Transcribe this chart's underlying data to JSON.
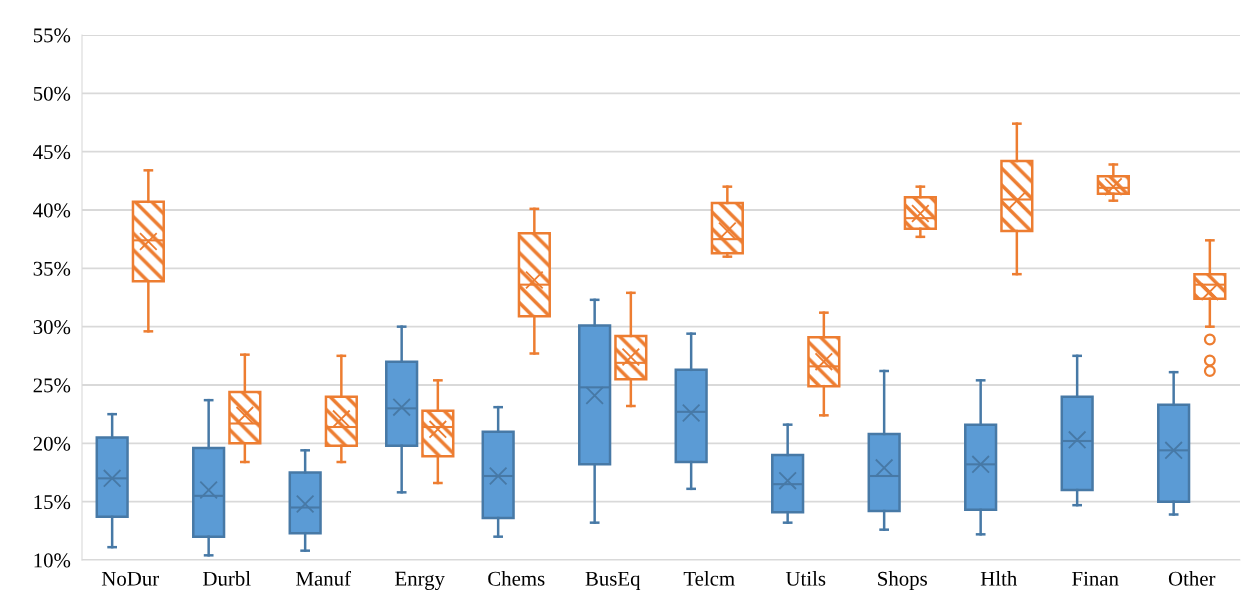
{
  "chart_data": {
    "type": "box",
    "categories": [
      "NoDur",
      "Durbl",
      "Manuf",
      "Enrgy",
      "Chems",
      "BusEq",
      "Telcm",
      "Utils",
      "Shops",
      "Hlth",
      "Finan",
      "Other"
    ],
    "ylim": [
      10,
      55
    ],
    "yticks": [
      {
        "value": 10,
        "label": "10%"
      },
      {
        "value": 15,
        "label": "15%"
      },
      {
        "value": 20,
        "label": "20%"
      },
      {
        "value": 25,
        "label": "25%"
      },
      {
        "value": 30,
        "label": "30%"
      },
      {
        "value": 35,
        "label": "35%"
      },
      {
        "value": 40,
        "label": "40%"
      },
      {
        "value": 45,
        "label": "45%"
      },
      {
        "value": 50,
        "label": "50%"
      },
      {
        "value": 55,
        "label": "55%"
      }
    ],
    "grid": "y",
    "legend": false,
    "series": [
      {
        "color": "#5b9bd5",
        "boxes": [
          {
            "low": 11.1,
            "q1": 13.7,
            "median": 17.0,
            "q3": 20.5,
            "high": 22.5,
            "mean": 17.0
          },
          {
            "low": 10.4,
            "q1": 12.0,
            "median": 15.5,
            "q3": 19.6,
            "high": 23.7,
            "mean": 16.0
          },
          {
            "low": 10.8,
            "q1": 12.3,
            "median": 14.5,
            "q3": 17.5,
            "high": 19.4,
            "mean": 14.8
          },
          {
            "low": 15.8,
            "q1": 19.8,
            "median": 23.0,
            "q3": 27.0,
            "high": 30.0,
            "mean": 23.1
          },
          {
            "low": 12.0,
            "q1": 13.6,
            "median": 17.2,
            "q3": 21.0,
            "high": 23.1,
            "mean": 17.2
          },
          {
            "low": 13.2,
            "q1": 18.2,
            "median": 24.8,
            "q3": 30.1,
            "high": 32.3,
            "mean": 24.1
          },
          {
            "low": 16.1,
            "q1": 18.4,
            "median": 22.7,
            "q3": 26.3,
            "high": 29.4,
            "mean": 22.6
          },
          {
            "low": 13.2,
            "q1": 14.1,
            "median": 16.5,
            "q3": 19.0,
            "high": 21.6,
            "mean": 16.8
          },
          {
            "low": 12.6,
            "q1": 14.2,
            "median": 17.2,
            "q3": 20.8,
            "high": 26.2,
            "mean": 17.9
          },
          {
            "low": 12.2,
            "q1": 14.3,
            "median": 18.2,
            "q3": 21.6,
            "high": 25.4,
            "mean": 18.2
          },
          {
            "low": 14.7,
            "q1": 16.0,
            "median": 20.2,
            "q3": 24.0,
            "high": 27.5,
            "mean": 20.3
          },
          {
            "low": 13.9,
            "q1": 15.0,
            "median": 19.4,
            "q3": 23.3,
            "high": 26.1,
            "mean": 19.4
          }
        ]
      },
      {
        "color": "#ed7d31",
        "boxes": [
          {
            "low": 29.6,
            "q1": 33.9,
            "median": 37.4,
            "q3": 40.7,
            "high": 43.4,
            "mean": 37.3
          },
          {
            "low": 18.4,
            "q1": 20.0,
            "median": 21.7,
            "q3": 24.4,
            "high": 27.6,
            "mean": 22.4
          },
          {
            "low": 18.4,
            "q1": 19.8,
            "median": 21.4,
            "q3": 24.0,
            "high": 27.5,
            "mean": 22.1
          },
          {
            "low": 16.6,
            "q1": 18.9,
            "median": 21.4,
            "q3": 22.8,
            "high": 25.4,
            "mean": 21.2
          },
          {
            "low": 27.7,
            "q1": 30.9,
            "median": 33.6,
            "q3": 38.0,
            "high": 40.1,
            "mean": 34.0
          },
          {
            "low": 23.2,
            "q1": 25.5,
            "median": 26.9,
            "q3": 29.2,
            "high": 32.9,
            "mean": 27.4
          },
          {
            "low": 36.0,
            "q1": 36.3,
            "median": 37.5,
            "q3": 40.6,
            "high": 42.0,
            "mean": 38.2
          },
          {
            "low": 22.4,
            "q1": 24.9,
            "median": 26.6,
            "q3": 29.1,
            "high": 31.2,
            "mean": 27.0
          },
          {
            "low": 37.7,
            "q1": 38.4,
            "median": 39.3,
            "q3": 41.1,
            "high": 42.0,
            "mean": 39.7
          },
          {
            "low": 34.5,
            "q1": 38.2,
            "median": 40.9,
            "q3": 44.2,
            "high": 47.4,
            "mean": 40.8
          },
          {
            "low": 40.8,
            "q1": 41.4,
            "median": 41.9,
            "q3": 42.9,
            "high": 43.9,
            "mean": 42.0
          },
          {
            "low": 30.0,
            "q1": 32.4,
            "median": 33.6,
            "q3": 34.5,
            "high": 37.4,
            "mean": 33.0,
            "outliers": [
              28.9,
              27.1,
              26.2
            ]
          }
        ]
      }
    ]
  }
}
